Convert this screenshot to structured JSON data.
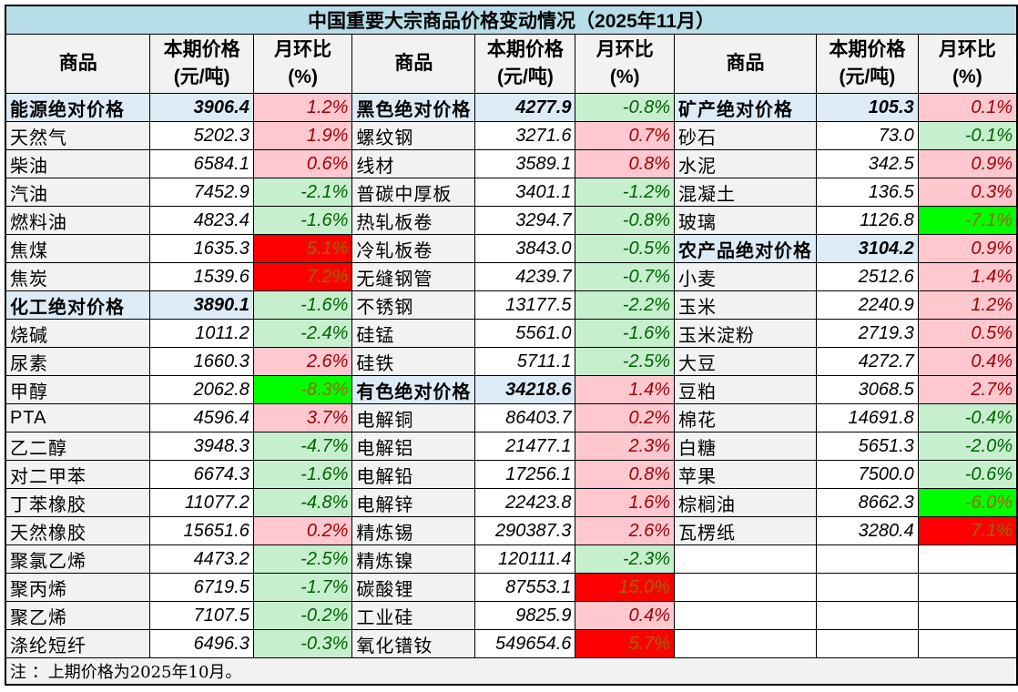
{
  "title": "中国重要大宗商品价格变动情况（2025年11月）",
  "headers": {
    "name": "商品",
    "price": [
      "本期价格",
      "(元/吨)"
    ],
    "pct": [
      "月环比",
      "(%)"
    ]
  },
  "footnote": "注 ：上期价格为2025年10月。",
  "colors": {
    "title_bg": "#b7dde8",
    "group_bg": "#ddebf7",
    "up_bg": "#ffc7ce",
    "up_text": "#9c0006",
    "down_bg": "#c6efce",
    "down_text": "#006100",
    "strong_up_bg": "#ff0000",
    "strong_down_bg": "#00ff00"
  },
  "columns": [
    [
      {
        "name": "能源绝对价格",
        "price": "3906.4",
        "pct": "1.2%",
        "group": true,
        "style": "pink"
      },
      {
        "name": "天然气",
        "price": "5202.3",
        "pct": "1.9%",
        "style": "pink"
      },
      {
        "name": "柴油",
        "price": "6584.1",
        "pct": "0.6%",
        "style": "pink"
      },
      {
        "name": "汽油",
        "price": "7452.9",
        "pct": "-2.1%",
        "style": "green"
      },
      {
        "name": "燃料油",
        "price": "4823.4",
        "pct": "-1.6%",
        "style": "green"
      },
      {
        "name": "焦煤",
        "price": "1635.3",
        "pct": "5.1%",
        "style": "red"
      },
      {
        "name": "焦炭",
        "price": "1539.6",
        "pct": "7.2%",
        "style": "red"
      },
      {
        "name": "化工绝对价格",
        "price": "3890.1",
        "pct": "-1.6%",
        "group": true,
        "style": "green"
      },
      {
        "name": "烧碱",
        "price": "1011.2",
        "pct": "-2.4%",
        "style": "green"
      },
      {
        "name": "尿素",
        "price": "1660.3",
        "pct": "2.6%",
        "style": "pink"
      },
      {
        "name": "甲醇",
        "price": "2062.8",
        "pct": "-8.3%",
        "style": "bgreen"
      },
      {
        "name": "PTA",
        "price": "4596.4",
        "pct": "3.7%",
        "style": "pink"
      },
      {
        "name": "乙二醇",
        "price": "3948.3",
        "pct": "-4.7%",
        "style": "green"
      },
      {
        "name": "对二甲苯",
        "price": "6674.3",
        "pct": "-1.6%",
        "style": "green"
      },
      {
        "name": "丁苯橡胶",
        "price": "11077.2",
        "pct": "-4.8%",
        "style": "green"
      },
      {
        "name": "天然橡胶",
        "price": "15651.6",
        "pct": "0.2%",
        "style": "pink"
      },
      {
        "name": "聚氯乙烯",
        "price": "4473.2",
        "pct": "-2.5%",
        "style": "green"
      },
      {
        "name": "聚丙烯",
        "price": "6719.5",
        "pct": "-1.7%",
        "style": "green"
      },
      {
        "name": "聚乙烯",
        "price": "7107.5",
        "pct": "-0.2%",
        "style": "green"
      },
      {
        "name": "涤纶短纤",
        "price": "6496.3",
        "pct": "-0.3%",
        "style": "green"
      }
    ],
    [
      {
        "name": "黑色绝对价格",
        "price": "4277.9",
        "pct": "-0.8%",
        "group": true,
        "style": "green"
      },
      {
        "name": "螺纹钢",
        "price": "3271.6",
        "pct": "0.7%",
        "style": "pink"
      },
      {
        "name": "线材",
        "price": "3589.1",
        "pct": "0.8%",
        "style": "pink"
      },
      {
        "name": "普碳中厚板",
        "price": "3401.1",
        "pct": "-1.2%",
        "style": "green"
      },
      {
        "name": "热轧板卷",
        "price": "3294.7",
        "pct": "-0.8%",
        "style": "green"
      },
      {
        "name": "冷轧板卷",
        "price": "3843.0",
        "pct": "-0.5%",
        "style": "green"
      },
      {
        "name": "无缝钢管",
        "price": "4239.7",
        "pct": "-0.7%",
        "style": "green"
      },
      {
        "name": "不锈钢",
        "price": "13177.5",
        "pct": "-2.2%",
        "style": "green"
      },
      {
        "name": "硅锰",
        "price": "5561.0",
        "pct": "-1.6%",
        "style": "green"
      },
      {
        "name": "硅铁",
        "price": "5711.1",
        "pct": "-2.5%",
        "style": "green"
      },
      {
        "name": "有色绝对价格",
        "price": "34218.6",
        "pct": "1.4%",
        "group": true,
        "style": "pink"
      },
      {
        "name": "电解铜",
        "price": "86403.7",
        "pct": "0.2%",
        "style": "pink"
      },
      {
        "name": "电解铝",
        "price": "21477.1",
        "pct": "2.3%",
        "style": "pink"
      },
      {
        "name": "电解铅",
        "price": "17256.1",
        "pct": "0.8%",
        "style": "pink"
      },
      {
        "name": "电解锌",
        "price": "22423.8",
        "pct": "1.6%",
        "style": "pink"
      },
      {
        "name": "精炼锡",
        "price": "290387.3",
        "pct": "2.6%",
        "style": "pink"
      },
      {
        "name": "精炼镍",
        "price": "120111.4",
        "pct": "-2.3%",
        "style": "green"
      },
      {
        "name": "碳酸锂",
        "price": "87553.1",
        "pct": "15.0%",
        "style": "red"
      },
      {
        "name": "工业硅",
        "price": "9825.9",
        "pct": "0.4%",
        "style": "pink"
      },
      {
        "name": "氧化镨钕",
        "price": "549654.6",
        "pct": "5.7%",
        "style": "red"
      }
    ],
    [
      {
        "name": "矿产绝对价格",
        "price": "105.3",
        "pct": "0.1%",
        "group": true,
        "style": "pink"
      },
      {
        "name": "砂石",
        "price": "73.0",
        "pct": "-0.1%",
        "style": "green"
      },
      {
        "name": "水泥",
        "price": "342.5",
        "pct": "0.9%",
        "style": "pink"
      },
      {
        "name": "混凝土",
        "price": "136.5",
        "pct": "0.3%",
        "style": "pink"
      },
      {
        "name": "玻璃",
        "price": "1126.8",
        "pct": "-7.1%",
        "style": "bgreen"
      },
      {
        "name": "农产品绝对价格",
        "price": "3104.2",
        "pct": "0.9%",
        "group": true,
        "style": "pink"
      },
      {
        "name": "小麦",
        "price": "2512.6",
        "pct": "1.4%",
        "style": "pink"
      },
      {
        "name": "玉米",
        "price": "2240.9",
        "pct": "1.2%",
        "style": "pink"
      },
      {
        "name": "玉米淀粉",
        "price": "2719.3",
        "pct": "0.5%",
        "style": "pink"
      },
      {
        "name": "大豆",
        "price": "4272.7",
        "pct": "0.4%",
        "style": "pink"
      },
      {
        "name": "豆粕",
        "price": "3068.5",
        "pct": "2.7%",
        "style": "pink"
      },
      {
        "name": "棉花",
        "price": "14691.8",
        "pct": "-0.4%",
        "style": "green"
      },
      {
        "name": "白糖",
        "price": "5651.3",
        "pct": "-2.0%",
        "style": "green"
      },
      {
        "name": "苹果",
        "price": "7500.0",
        "pct": "-0.6%",
        "style": "green"
      },
      {
        "name": "棕榈油",
        "price": "8662.3",
        "pct": "-6.0%",
        "style": "bgreen"
      },
      {
        "name": "瓦楞纸",
        "price": "3280.4",
        "pct": "7.1%",
        "style": "red"
      }
    ]
  ]
}
